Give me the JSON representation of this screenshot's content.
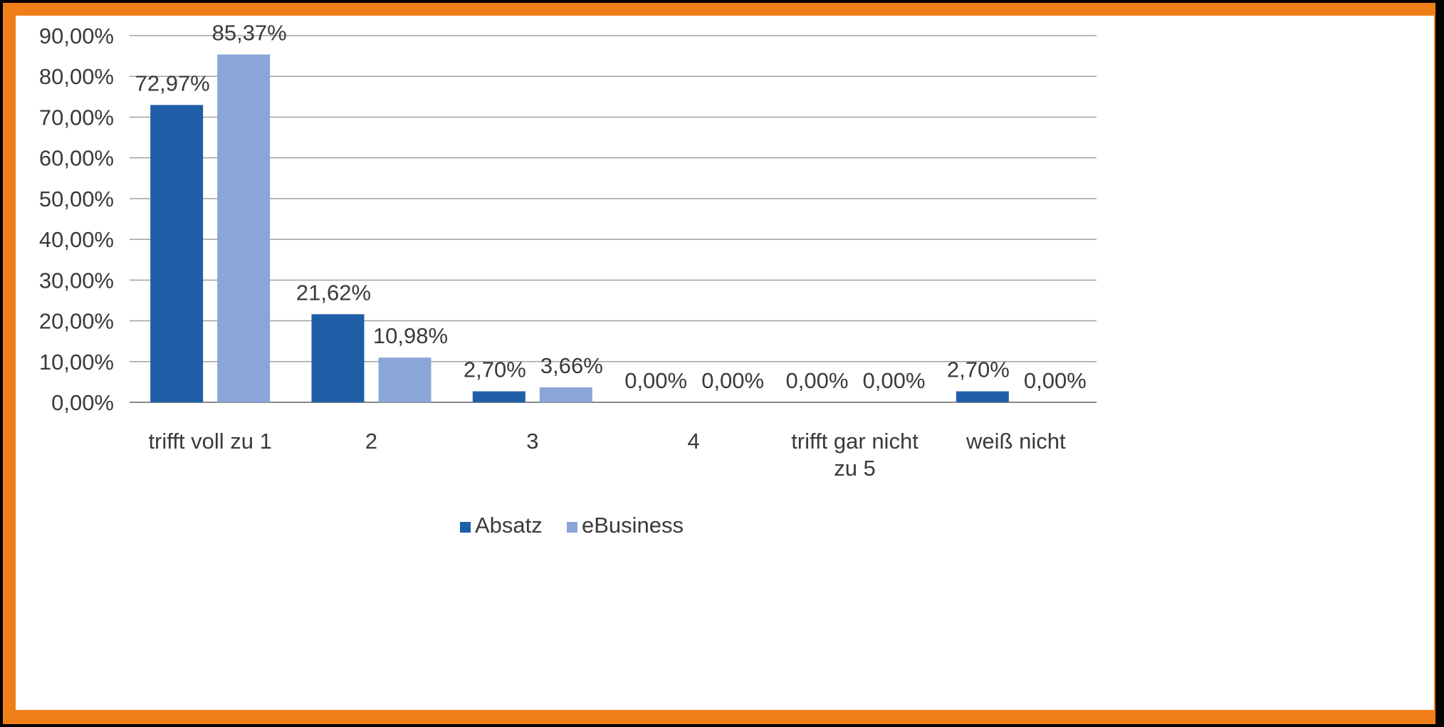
{
  "chart_data": {
    "type": "bar",
    "categories": [
      [
        "trifft voll zu 1"
      ],
      [
        "2"
      ],
      [
        "3"
      ],
      [
        "4"
      ],
      [
        "trifft gar nicht",
        "zu 5"
      ],
      [
        "weiß nicht"
      ]
    ],
    "series": [
      {
        "name": "Absatz",
        "color": "#1f5fa8",
        "values": [
          72.97,
          21.62,
          2.7,
          0.0,
          0.0,
          2.7
        ],
        "labels": [
          "72,97%",
          "21,62%",
          "2,70%",
          "0,00%",
          "0,00%",
          "2,70%"
        ]
      },
      {
        "name": "eBusiness",
        "color": "#8aa5d8",
        "values": [
          85.37,
          10.98,
          3.66,
          0.0,
          0.0,
          0.0
        ],
        "labels": [
          "85,37%",
          "10,98%",
          "3,66%",
          "0,00%",
          "0,00%",
          "0,00%"
        ]
      }
    ],
    "y_ticks": [
      "0,00%",
      "10,00%",
      "20,00%",
      "30,00%",
      "40,00%",
      "50,00%",
      "60,00%",
      "70,00%",
      "80,00%",
      "90,00%"
    ],
    "ylim": [
      0,
      90
    ],
    "grid": true,
    "legend_position": "bottom"
  },
  "colors": {
    "border": "#f07f1a",
    "outer": "#000000",
    "gridline": "#a0a0a0"
  }
}
